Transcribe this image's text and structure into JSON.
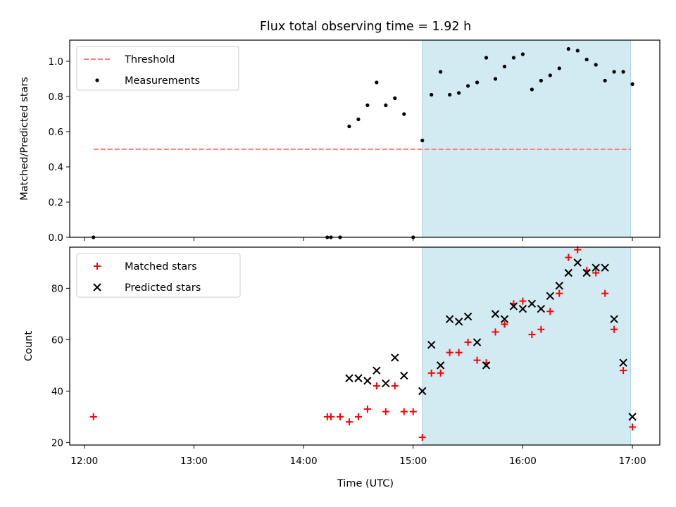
{
  "chart_data": {
    "type": "scatter",
    "title": "Flux total observing time = 1.92 h",
    "xlabel": "Time (UTC)",
    "x_ticks": [
      "12:00",
      "13:00",
      "14:00",
      "15:00",
      "16:00",
      "17:00"
    ],
    "x_range": [
      "11:52",
      "17:15"
    ],
    "shaded_interval": [
      "15:05",
      "16:59"
    ],
    "shade_color": "#add8e6",
    "panels": [
      {
        "ylabel": "Matched/Predicted stars",
        "ylim": [
          0,
          1.12
        ],
        "y_ticks": [
          0.0,
          0.2,
          0.4,
          0.6,
          0.8,
          1.0
        ],
        "legend_position": "upper-left",
        "series": [
          {
            "name": "Threshold",
            "kind": "dashed-line",
            "color": "#ff7f7f",
            "x": [
              "12:05",
              "16:59"
            ],
            "y": [
              0.5,
              0.5
            ]
          },
          {
            "name": "Measurements",
            "kind": "dot",
            "color": "#000000",
            "x": [
              "12:05",
              "14:13",
              "14:15",
              "14:20",
              "14:25",
              "14:30",
              "14:35",
              "14:40",
              "14:45",
              "14:50",
              "14:55",
              "15:00",
              "15:05",
              "15:10",
              "15:15",
              "15:20",
              "15:25",
              "15:30",
              "15:35",
              "15:40",
              "15:45",
              "15:50",
              "15:55",
              "16:00",
              "16:05",
              "16:10",
              "16:15",
              "16:20",
              "16:25",
              "16:30",
              "16:35",
              "16:40",
              "16:45",
              "16:50",
              "16:55",
              "17:00"
            ],
            "y": [
              0.0,
              0.0,
              0.0,
              0.0,
              0.63,
              0.67,
              0.75,
              0.88,
              0.75,
              0.79,
              0.7,
              0.0,
              0.55,
              0.81,
              0.94,
              0.81,
              0.82,
              0.86,
              0.88,
              1.02,
              0.9,
              0.97,
              1.02,
              1.04,
              0.84,
              0.89,
              0.92,
              0.96,
              1.07,
              1.06,
              1.01,
              0.98,
              0.89,
              0.94,
              0.94,
              0.87
            ]
          }
        ]
      },
      {
        "ylabel": "Count",
        "ylim": [
          19,
          96
        ],
        "y_ticks": [
          20,
          40,
          60,
          80
        ],
        "legend_position": "upper-left",
        "series": [
          {
            "name": "Matched stars",
            "kind": "plus",
            "color": "#ff0000",
            "x": [
              "12:05",
              "14:13",
              "14:15",
              "14:20",
              "14:25",
              "14:30",
              "14:35",
              "14:40",
              "14:45",
              "14:50",
              "14:55",
              "15:00",
              "15:05",
              "15:10",
              "15:15",
              "15:20",
              "15:25",
              "15:30",
              "15:35",
              "15:40",
              "15:45",
              "15:50",
              "15:55",
              "16:00",
              "16:05",
              "16:10",
              "16:15",
              "16:20",
              "16:25",
              "16:30",
              "16:35",
              "16:40",
              "16:45",
              "16:50",
              "16:55",
              "17:00"
            ],
            "y": [
              30,
              30,
              30,
              30,
              28,
              30,
              33,
              42,
              32,
              42,
              32,
              32,
              22,
              47,
              47,
              55,
              55,
              59,
              52,
              51,
              63,
              66,
              74,
              75,
              62,
              64,
              71,
              78,
              92,
              95,
              87,
              86,
              78,
              64,
              48,
              26
            ]
          },
          {
            "name": "Predicted stars",
            "kind": "x",
            "color": "#000000",
            "x": [
              "14:25",
              "14:30",
              "14:35",
              "14:40",
              "14:45",
              "14:50",
              "14:55",
              "15:05",
              "15:10",
              "15:15",
              "15:20",
              "15:25",
              "15:30",
              "15:35",
              "15:40",
              "15:45",
              "15:50",
              "15:55",
              "16:00",
              "16:05",
              "16:10",
              "16:15",
              "16:20",
              "16:25",
              "16:30",
              "16:35",
              "16:40",
              "16:45",
              "16:50",
              "16:55",
              "17:00"
            ],
            "y": [
              45,
              45,
              44,
              48,
              43,
              53,
              46,
              40,
              58,
              50,
              68,
              67,
              69,
              59,
              50,
              70,
              68,
              73,
              72,
              74,
              72,
              77,
              81,
              86,
              90,
              86,
              88,
              88,
              68,
              51,
              30
            ]
          }
        ]
      }
    ]
  }
}
